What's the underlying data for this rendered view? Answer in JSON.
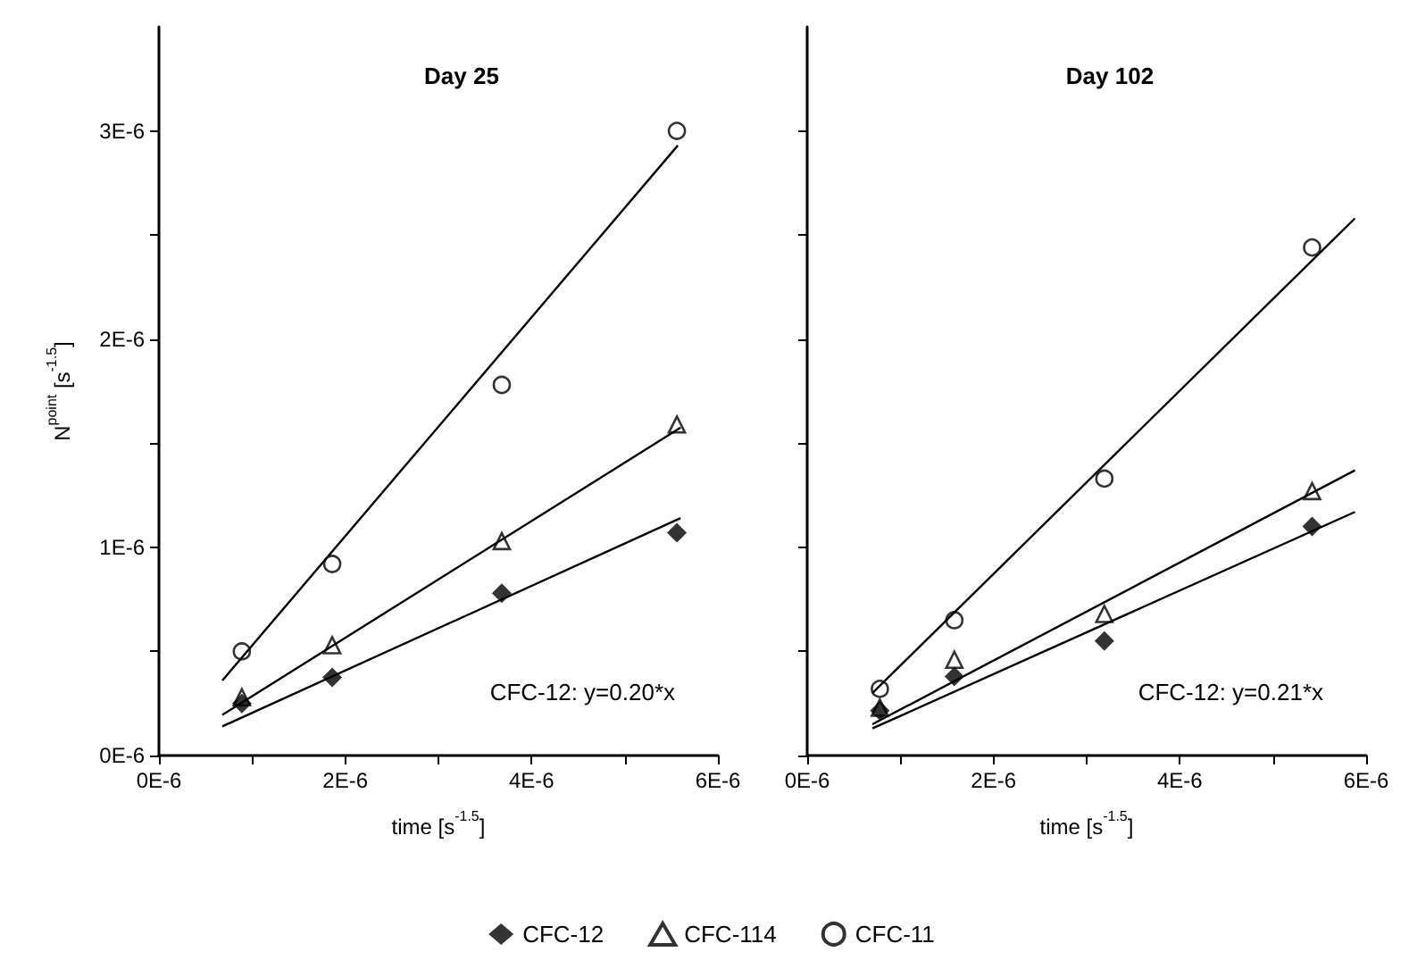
{
  "chart_data": [
    {
      "type": "scatter",
      "title": "Day 25",
      "xlabel": "time [s$^{-1.5}$]",
      "ylabel": "N$^{point}$ [s$^{-1.5}$]",
      "annotations": [
        "CFC-12: y=0.20*x"
      ],
      "xlim": [
        0,
        6e-06
      ],
      "ylim": [
        0,
        3.5e-06
      ],
      "xticks": [
        {
          "value": 0,
          "label": "0E-6"
        },
        {
          "value": 1e-06,
          "label": null
        },
        {
          "value": 2e-06,
          "label": "2E-6"
        },
        {
          "value": 3e-06,
          "label": null
        },
        {
          "value": 4e-06,
          "label": "4E-6"
        },
        {
          "value": 5e-06,
          "label": null
        },
        {
          "value": 6e-06,
          "label": "6E-6"
        }
      ],
      "yticks": [
        {
          "value": 0,
          "label": "0E-6"
        },
        {
          "value": 5e-07,
          "label": null
        },
        {
          "value": 1e-06,
          "label": "1E-6"
        },
        {
          "value": 1.5e-06,
          "label": null
        },
        {
          "value": 2e-06,
          "label": "2E-6"
        },
        {
          "value": 2.5e-06,
          "label": null
        },
        {
          "value": 3e-06,
          "label": "3E-6"
        }
      ],
      "grid": false,
      "legend": "bottom",
      "series": [
        {
          "name": "CFC-12",
          "color": "#000000",
          "marker": "diamond",
          "x": [
            8.9e-07,
            1.86e-06,
            3.68e-06,
            5.56e-06
          ],
          "values": [
            2.5e-07,
            3.75e-07,
            7.8e-07,
            1.07e-06
          ]
        },
        {
          "name": "CFC-114",
          "color": "#000000",
          "marker": "triangle",
          "x": [
            8.9e-07,
            1.86e-06,
            3.68e-06,
            5.56e-06
          ],
          "values": [
            2.8e-07,
            5.3e-07,
            1.03e-06,
            1.59e-06
          ]
        },
        {
          "name": "CFC-11",
          "color": "#000000",
          "marker": "circle",
          "x": [
            8.9e-07,
            1.86e-06,
            3.68e-06,
            5.56e-06
          ],
          "values": [
            5e-07,
            9.2e-07,
            1.78e-06,
            3e-06
          ]
        },
        {
          "type": "line",
          "color": "#000000",
          "marker": "none",
          "x": [
            6.8e-07,
            5.6e-06
          ],
          "values": [
            1.4e-07,
            1.14e-06
          ]
        },
        {
          "type": "line",
          "color": "#000000",
          "marker": "none",
          "x": [
            6.8e-07,
            5.6e-06
          ],
          "values": [
            1.95e-07,
            1.575e-06
          ]
        },
        {
          "type": "line",
          "color": "#000000",
          "marker": "none",
          "x": [
            6.8e-07,
            5.57e-06
          ],
          "values": [
            3.6e-07,
            2.93e-06
          ]
        }
      ]
    },
    {
      "type": "scatter",
      "title": "Day 102",
      "xlabel": "time [s$^{-1.5}$]",
      "annotations": [
        "CFC-12: y=0.21*x"
      ],
      "xlim": [
        0,
        6e-06
      ],
      "ylim": [
        0,
        3.5e-06
      ],
      "tick_labels": "x",
      "xticks": [
        {
          "value": 0,
          "label": "0E-6"
        },
        {
          "value": 1e-06,
          "label": null
        },
        {
          "value": 2e-06,
          "label": "2E-6"
        },
        {
          "value": 3e-06,
          "label": null
        },
        {
          "value": 4e-06,
          "label": "4E-6"
        },
        {
          "value": 5e-06,
          "label": null
        },
        {
          "value": 6e-06,
          "label": "6E-6"
        }
      ],
      "yticks": [
        {
          "value": 0,
          "label": null
        },
        {
          "value": 5e-07,
          "label": null
        },
        {
          "value": 1e-06,
          "label": null
        },
        {
          "value": 1.5e-06,
          "label": null
        },
        {
          "value": 2e-06,
          "label": null
        },
        {
          "value": 2.5e-06,
          "label": null
        },
        {
          "value": 3e-06,
          "label": null
        }
      ],
      "grid": false,
      "legend": false,
      "series": [
        {
          "color": "#000000",
          "marker": "diamond",
          "x": [
            7.8e-07,
            1.58e-06,
            3.19e-06,
            5.42e-06
          ],
          "values": [
            2.15e-07,
            3.8e-07,
            5.5e-07,
            1.1e-06
          ]
        },
        {
          "color": "#000000",
          "marker": "triangle",
          "x": [
            7.8e-07,
            1.58e-06,
            3.19e-06,
            5.42e-06
          ],
          "values": [
            2.3e-07,
            4.6e-07,
            6.8e-07,
            1.27e-06
          ]
        },
        {
          "color": "#000000",
          "marker": "circle",
          "x": [
            7.8e-07,
            1.58e-06,
            3.19e-06,
            5.42e-06
          ],
          "values": [
            3.2e-07,
            6.5e-07,
            1.33e-06,
            2.44e-06
          ]
        },
        {
          "type": "line",
          "color": "#000000",
          "marker": "none",
          "x": [
            7e-07,
            5.88e-06
          ],
          "values": [
            1.3e-07,
            1.17e-06
          ]
        },
        {
          "type": "line",
          "color": "#000000",
          "marker": "none",
          "x": [
            7e-07,
            5.88e-06
          ],
          "values": [
            1.5e-07,
            1.37e-06
          ]
        },
        {
          "type": "line",
          "color": "#000000",
          "marker": "none",
          "x": [
            7e-07,
            5.88e-06
          ],
          "values": [
            3e-07,
            2.58e-06
          ]
        }
      ]
    }
  ]
}
